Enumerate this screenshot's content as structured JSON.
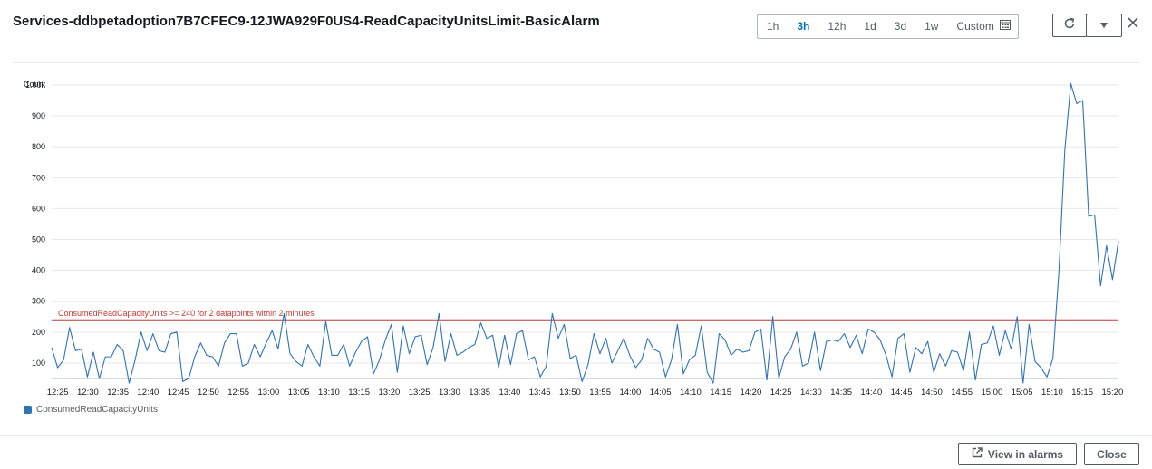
{
  "window": {
    "title": "Services-ddbpetadoption7B7CFEC9-12JWA929F0US4-ReadCapacityUnitsLimit-BasicAlarm"
  },
  "toolbar": {
    "ranges": [
      "1h",
      "3h",
      "12h",
      "1d",
      "3d",
      "1w"
    ],
    "active_range": "3h",
    "custom_label": "Custom",
    "icons": {
      "custom": "calendar-icon",
      "refresh": "refresh-icon",
      "dropdown": "caret-down-icon",
      "close": "close-icon"
    }
  },
  "footer": {
    "view_in_alarms_label": "View in alarms",
    "view_in_alarms_icon": "external-link-icon",
    "close_label": "Close"
  },
  "colors": {
    "series": "#2e73b8",
    "threshold": "#c23934",
    "active_range": "#0073bb"
  },
  "chart_data": {
    "type": "line",
    "ylabel": "Count",
    "ylim": [
      50,
      1000
    ],
    "yticks": [
      100,
      200,
      300,
      400,
      500,
      600,
      700,
      800,
      900,
      1000
    ],
    "ytick_labels": [
      "100",
      "200",
      "300",
      "400",
      "500",
      "600",
      "700",
      "800",
      "900",
      "1.00k"
    ],
    "xticks": [
      "12:25",
      "12:30",
      "12:35",
      "12:40",
      "12:45",
      "12:50",
      "12:55",
      "13:00",
      "13:05",
      "13:10",
      "13:15",
      "13:20",
      "13:25",
      "13:30",
      "13:35",
      "13:40",
      "13:45",
      "13:50",
      "13:55",
      "14:00",
      "14:05",
      "14:10",
      "14:15",
      "14:20",
      "14:25",
      "14:30",
      "14:35",
      "14:40",
      "14:45",
      "14:50",
      "14:55",
      "15:00",
      "15:05",
      "15:10",
      "15:15",
      "15:20"
    ],
    "grid": true,
    "legend_position": "bottom-left",
    "threshold": {
      "value": 240,
      "label": "ConsumedReadCapacityUnits >= 240 for 2 datapoints within 2 minutes"
    },
    "series": [
      {
        "name": "ConsumedReadCapacityUnits",
        "x_start": "12:24",
        "x_end": "15:21",
        "values": [
          150,
          85,
          110,
          215,
          140,
          145,
          55,
          135,
          50,
          120,
          120,
          160,
          140,
          35,
          110,
          200,
          140,
          195,
          140,
          135,
          195,
          200,
          40,
          50,
          120,
          165,
          125,
          120,
          90,
          165,
          195,
          195,
          90,
          100,
          160,
          120,
          165,
          205,
          145,
          260,
          130,
          105,
          90,
          160,
          120,
          90,
          235,
          125,
          125,
          160,
          90,
          135,
          170,
          185,
          65,
          110,
          175,
          225,
          70,
          220,
          130,
          185,
          190,
          95,
          150,
          260,
          105,
          195,
          125,
          135,
          150,
          160,
          230,
          180,
          190,
          85,
          190,
          95,
          195,
          205,
          110,
          120,
          55,
          90,
          260,
          180,
          225,
          115,
          125,
          40,
          95,
          195,
          130,
          180,
          100,
          140,
          180,
          125,
          85,
          110,
          180,
          145,
          135,
          55,
          110,
          225,
          65,
          110,
          125,
          220,
          70,
          35,
          195,
          175,
          125,
          145,
          135,
          140,
          200,
          210,
          45,
          250,
          50,
          120,
          145,
          200,
          90,
          100,
          200,
          75,
          170,
          175,
          170,
          195,
          150,
          190,
          130,
          210,
          200,
          175,
          125,
          55,
          180,
          195,
          70,
          150,
          130,
          170,
          70,
          130,
          90,
          140,
          135,
          75,
          200,
          45,
          160,
          165,
          220,
          125,
          205,
          145,
          250,
          35,
          225,
          105,
          85,
          55,
          115,
          395,
          790,
          1005,
          940,
          950,
          575,
          580,
          350,
          480,
          370,
          495
        ]
      }
    ]
  }
}
